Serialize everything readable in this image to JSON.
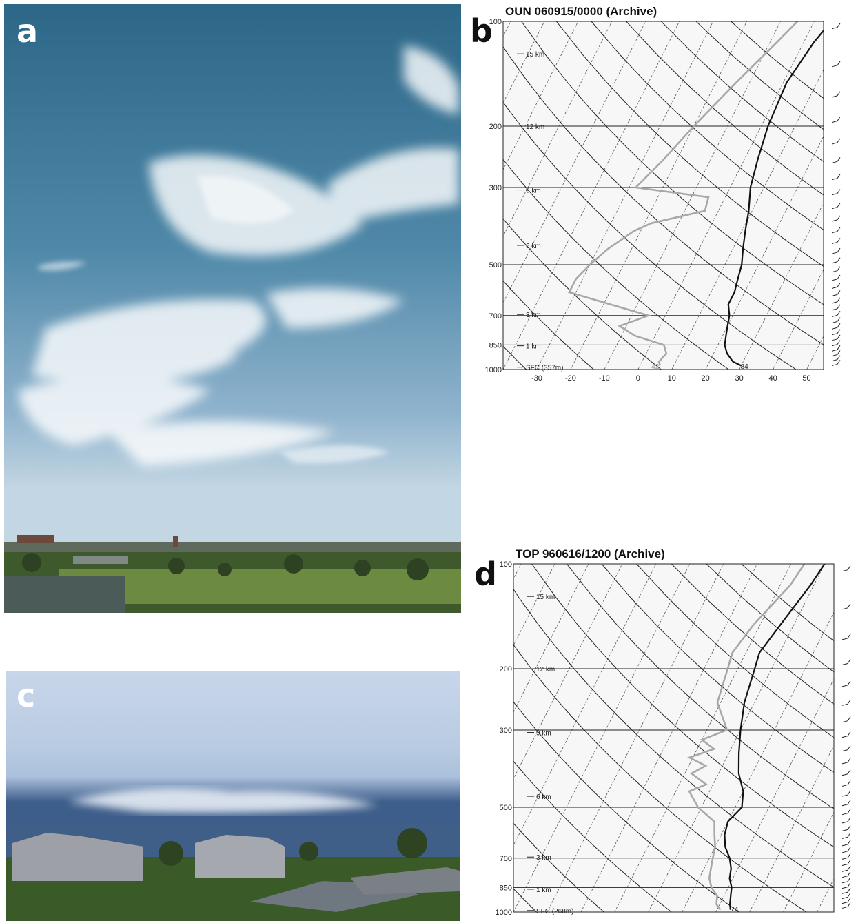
{
  "panels": {
    "a": {
      "label": "a"
    },
    "b": {
      "label": "b"
    },
    "c": {
      "label": "c"
    },
    "d": {
      "label": "d"
    }
  },
  "colors": {
    "temperature": "#111111",
    "dewpoint": "#a8a8a8",
    "sky_top_a": "#2f6d8f",
    "sky_low_a": "#a9c6dc",
    "sky_c": "#c5d4ea"
  },
  "chart_data": [
    {
      "type": "skew-t",
      "title": "OUN   060915/0000  (Archive)",
      "pressure_ticks": [
        100,
        200,
        300,
        500,
        700,
        850,
        1000
      ],
      "pressure_tick_labels": [
        "100",
        "200",
        "300",
        "500",
        "700",
        "850",
        "1000"
      ],
      "height_labels": [
        "15 km",
        "12 km",
        "9 km",
        "6 km",
        "3 km",
        "1 km",
        "SFC (357m)"
      ],
      "height_pressures": [
        124,
        200,
        305,
        440,
        695,
        855,
        985
      ],
      "x_ticks": [
        -30,
        -20,
        -10,
        0,
        10,
        20,
        30,
        40,
        50
      ],
      "x_tick_labels": [
        "-30",
        "-20",
        "-10",
        "0",
        "10",
        "20",
        "30",
        "40",
        "50"
      ],
      "xlim": [
        -40,
        55
      ],
      "ylim": [
        1000,
        100
      ],
      "surface_labels": {
        "dewpoint": "42",
        "temperature": "84"
      },
      "series": [
        {
          "key": "temperature",
          "p": [
            100,
            115,
            150,
            200,
            250,
            300,
            350,
            400,
            450,
            500,
            550,
            600,
            650,
            700,
            750,
            800,
            850,
            900,
            950,
            975
          ],
          "t": [
            5,
            3,
            1,
            2,
            4,
            6,
            9,
            11,
            13,
            15,
            16,
            17,
            17,
            19,
            20,
            21,
            22,
            24,
            27,
            30
          ]
        },
        {
          "key": "dewpoint",
          "p": [
            100,
            115,
            150,
            200,
            250,
            300,
            320,
            350,
            380,
            400,
            450,
            500,
            550,
            600,
            650,
            700,
            750,
            800,
            850,
            900,
            950,
            975
          ],
          "t": [
            -5,
            -8,
            -14,
            -20,
            -24,
            -28,
            -5,
            -4,
            -18,
            -22,
            -27,
            -30,
            -32,
            -32,
            -18,
            -5,
            -12,
            -6,
            4,
            6,
            5,
            6
          ]
        }
      ]
    },
    {
      "type": "skew-t",
      "title": "TOP   960616/1200  (Archive)",
      "pressure_ticks": [
        100,
        200,
        300,
        500,
        700,
        850,
        1000
      ],
      "pressure_tick_labels": [
        "100",
        "200",
        "300",
        "500",
        "700",
        "850",
        "1000"
      ],
      "height_labels": [
        "15 km",
        "12 km",
        "9 km",
        "6 km",
        "3 km",
        "1 km",
        "SFC (268m)"
      ],
      "height_pressures": [
        124,
        200,
        305,
        465,
        695,
        860,
        990
      ],
      "x_ticks": [],
      "x_tick_labels": [],
      "xlim": [
        -40,
        55
      ],
      "ylim": [
        1000,
        100
      ],
      "surface_labels": {
        "dewpoint": "",
        "temperature": "74"
      },
      "series": [
        {
          "key": "temperature",
          "p": [
            100,
            115,
            150,
            180,
            200,
            250,
            300,
            350,
            400,
            450,
            500,
            550,
            600,
            650,
            700,
            750,
            800,
            850,
            900,
            950,
            985
          ],
          "t": [
            0,
            -1,
            -4,
            -6,
            -5,
            -3,
            0,
            3,
            6,
            10,
            12,
            10,
            11,
            13,
            16,
            18,
            19,
            21,
            22,
            23,
            24
          ]
        },
        {
          "key": "dewpoint",
          "p": [
            100,
            115,
            150,
            180,
            200,
            250,
            300,
            320,
            340,
            360,
            380,
            400,
            430,
            450,
            500,
            550,
            600,
            650,
            700,
            750,
            800,
            850,
            900,
            950,
            985
          ],
          "t": [
            -6,
            -7,
            -12,
            -14,
            -13,
            -11,
            -4,
            -10,
            -5,
            -11,
            -5,
            -8,
            -2,
            -6,
            -1,
            6,
            8,
            10,
            11,
            12,
            13,
            15,
            18,
            19,
            21
          ]
        }
      ]
    }
  ]
}
